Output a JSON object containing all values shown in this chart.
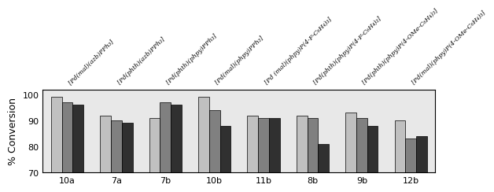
{
  "categories": [
    "10a",
    "7a",
    "7b",
    "10b",
    "11b",
    "8b",
    "9b",
    "12b"
  ],
  "series": [
    {
      "label": "light_gray",
      "color": "#c0c0c0",
      "values": [
        99,
        92,
        91,
        99,
        92,
        92,
        93,
        90
      ]
    },
    {
      "label": "medium_gray",
      "color": "#808080",
      "values": [
        97,
        90,
        97,
        94,
        91,
        91,
        91,
        83
      ]
    },
    {
      "label": "dark_gray",
      "color": "#303030",
      "values": [
        96,
        89,
        96,
        88,
        91,
        81,
        88,
        84
      ]
    }
  ],
  "ylabel": "% Conversion",
  "ylim": [
    70,
    102
  ],
  "yticks": [
    70,
    80,
    90,
    100
  ],
  "bar_width": 0.22,
  "legend_labels": [
    "[Pd(mal)(azb)PPh₃]",
    "[Pd(phth)(azb)PPh₃]",
    "[Pd(phth)(phpy)PPh₃]",
    "[Pd(mal)(phpy)PPh₃]",
    "[Pd (mal)(phpy)P(4-F-C₆H₄)₃]",
    "[Pd(phth)(phpy)P(4-F-C₆H₄)₃]",
    "[Pd(phth)(phpy)P(4-OMe-C₆H₄)₃]",
    "[Pd(mal)(phpy)P(4-OMe-C₆H₄)₃]"
  ],
  "plot_bg_color": "#e8e8e8",
  "fig_bg_color": "#ffffff",
  "bar_edge_color": "#000000",
  "label_rotation": 45,
  "label_fontsize": 5.8,
  "ylabel_fontsize": 9,
  "xtick_fontsize": 8,
  "ytick_fontsize": 8
}
